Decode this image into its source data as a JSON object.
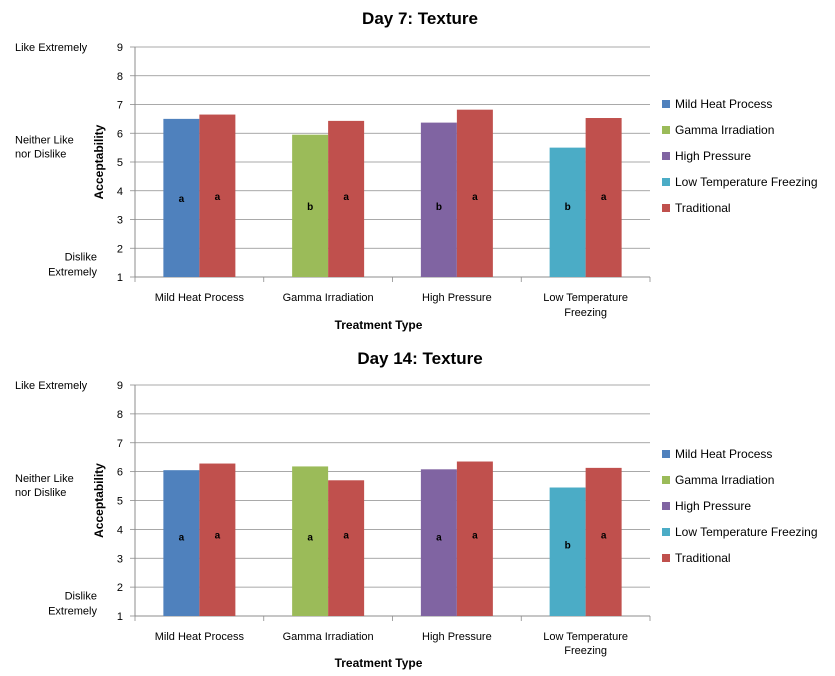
{
  "chart_data": [
    {
      "type": "bar",
      "title": "Day 7: Texture",
      "xlabel": "Treatment Type",
      "ylabel": "Acceptability",
      "ylim": [
        1,
        9
      ],
      "yticks": [
        "1",
        "2",
        "3",
        "4",
        "5",
        "6",
        "7",
        "8",
        "9"
      ],
      "scale_labels": {
        "top": "Like Extremely",
        "middle_line1": "Neither Like",
        "middle_line2": "nor Dislike",
        "bottom_line1": "Dislike",
        "bottom_line2": "Extremely"
      },
      "categories": [
        {
          "line1": "Mild Heat Process",
          "line2": ""
        },
        {
          "line1": "Gamma Irradiation",
          "line2": ""
        },
        {
          "line1": "High Pressure",
          "line2": ""
        },
        {
          "line1": "Low Temperature",
          "line2": "Freezing"
        }
      ],
      "grid": true,
      "legend_placement": "right",
      "legend": [
        {
          "name": "Mild Heat Process",
          "color": "#4F81BD"
        },
        {
          "name": "Gamma Irradiation",
          "color": "#9BBB59"
        },
        {
          "name": "High Pressure",
          "color": "#8064A2"
        },
        {
          "name": "Low Temperature Freezing",
          "color": "#4BACC6"
        },
        {
          "name": "Traditional",
          "color": "#C0504D"
        }
      ],
      "bars": [
        {
          "treatment": {
            "value": 6.5,
            "color": "#4F81BD",
            "letter": "a"
          },
          "traditional": {
            "value": 6.65,
            "color": "#C0504D",
            "letter": "a"
          }
        },
        {
          "treatment": {
            "value": 5.95,
            "color": "#9BBB59",
            "letter": "b"
          },
          "traditional": {
            "value": 6.43,
            "color": "#C0504D",
            "letter": "a"
          }
        },
        {
          "treatment": {
            "value": 6.37,
            "color": "#8064A2",
            "letter": "b"
          },
          "traditional": {
            "value": 6.82,
            "color": "#C0504D",
            "letter": "a"
          }
        },
        {
          "treatment": {
            "value": 5.5,
            "color": "#4BACC6",
            "letter": "b"
          },
          "traditional": {
            "value": 6.53,
            "color": "#C0504D",
            "letter": "a"
          }
        }
      ]
    },
    {
      "type": "bar",
      "title": "Day 14: Texture",
      "xlabel": "Treatment Type",
      "ylabel": "Acceptability",
      "ylim": [
        1,
        9
      ],
      "yticks": [
        "1",
        "2",
        "3",
        "4",
        "5",
        "6",
        "7",
        "8",
        "9"
      ],
      "scale_labels": {
        "top": "Like Extremely",
        "middle_line1": "Neither Like",
        "middle_line2": "nor Dislike",
        "bottom_line1": "Dislike",
        "bottom_line2": "Extremely"
      },
      "categories": [
        {
          "line1": "Mild Heat Process",
          "line2": ""
        },
        {
          "line1": "Gamma Irradiation",
          "line2": ""
        },
        {
          "line1": "High Pressure",
          "line2": ""
        },
        {
          "line1": "Low Temperature",
          "line2": "Freezing"
        }
      ],
      "grid": true,
      "legend_placement": "right",
      "legend": [
        {
          "name": "Mild Heat Process",
          "color": "#4F81BD"
        },
        {
          "name": "Gamma Irradiation",
          "color": "#9BBB59"
        },
        {
          "name": "High Pressure",
          "color": "#8064A2"
        },
        {
          "name": "Low Temperature Freezing",
          "color": "#4BACC6"
        },
        {
          "name": "Traditional",
          "color": "#C0504D"
        }
      ],
      "bars": [
        {
          "treatment": {
            "value": 6.05,
            "color": "#4F81BD",
            "letter": "a"
          },
          "traditional": {
            "value": 6.28,
            "color": "#C0504D",
            "letter": "a"
          }
        },
        {
          "treatment": {
            "value": 6.18,
            "color": "#9BBB59",
            "letter": "a"
          },
          "traditional": {
            "value": 5.7,
            "color": "#C0504D",
            "letter": "a"
          }
        },
        {
          "treatment": {
            "value": 6.08,
            "color": "#8064A2",
            "letter": "a"
          },
          "traditional": {
            "value": 6.35,
            "color": "#C0504D",
            "letter": "a"
          }
        },
        {
          "treatment": {
            "value": 5.45,
            "color": "#4BACC6",
            "letter": "b"
          },
          "traditional": {
            "value": 6.13,
            "color": "#C0504D",
            "letter": "a"
          }
        }
      ]
    }
  ]
}
